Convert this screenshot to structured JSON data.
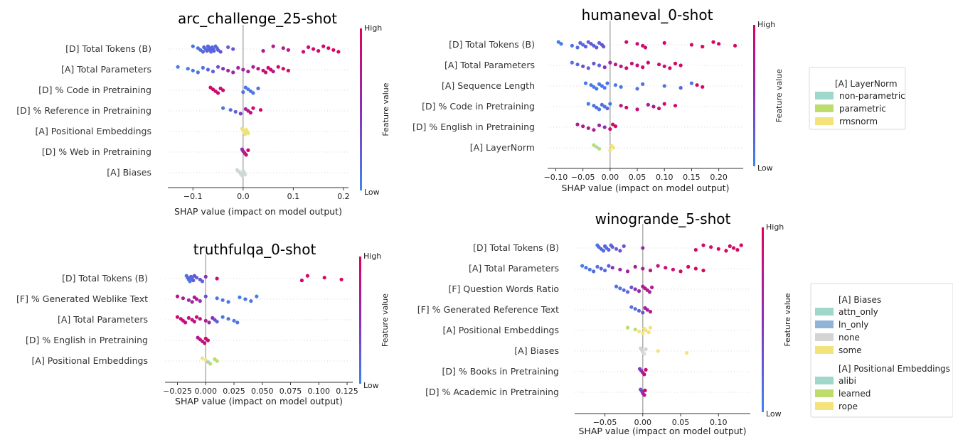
{
  "chart_data": [
    {
      "type": "scatter",
      "subtype": "shap-beeswarm",
      "title": "arc_challenge_25-shot",
      "xlabel": "SHAP value (impact on model output)",
      "xlim": [
        -0.15,
        0.21
      ],
      "xticks": [
        -0.1,
        0.0,
        0.1,
        0.2
      ],
      "xtick_labels": [
        "−0.1",
        "0.0",
        "0.1",
        "0.2"
      ],
      "colorbar": {
        "label": "Feature value",
        "high": "High",
        "low": "Low"
      },
      "features": [
        {
          "name": "[D] Total Tokens (B)",
          "points": [
            -0.1,
            -0.09,
            -0.085,
            -0.08,
            -0.078,
            -0.075,
            -0.072,
            -0.07,
            -0.068,
            -0.066,
            -0.064,
            -0.062,
            -0.06,
            -0.058,
            -0.055,
            -0.052,
            -0.05,
            -0.045,
            -0.03,
            -0.02,
            0.04,
            0.06,
            0.08,
            0.09,
            0.12,
            0.13,
            0.14,
            0.15,
            0.16,
            0.17,
            0.18,
            0.19
          ],
          "colors": [
            0.1,
            0.1,
            0.15,
            0.2,
            0.2,
            0.15,
            0.2,
            0.15,
            0.2,
            0.2,
            0.15,
            0.15,
            0.2,
            0.2,
            0.15,
            0.2,
            0.2,
            0.3,
            0.2,
            0.3,
            0.7,
            0.7,
            0.75,
            0.8,
            0.85,
            0.85,
            0.9,
            0.9,
            0.9,
            0.95,
            0.95,
            0.95
          ]
        },
        {
          "name": "[A] Total Parameters",
          "points": [
            -0.13,
            -0.11,
            -0.1,
            -0.09,
            -0.08,
            -0.07,
            -0.06,
            -0.05,
            -0.04,
            -0.03,
            -0.02,
            -0.01,
            0.0,
            0.01,
            0.02,
            0.03,
            0.04,
            0.045,
            0.05,
            0.055,
            0.06,
            0.07,
            0.08,
            0.09
          ],
          "colors": [
            0.05,
            0.05,
            0.1,
            0.1,
            0.1,
            0.2,
            0.2,
            0.3,
            0.5,
            0.6,
            0.6,
            0.65,
            0.6,
            0.65,
            0.7,
            0.8,
            0.85,
            0.85,
            0.9,
            0.9,
            0.7,
            0.9,
            0.95,
            0.95
          ]
        },
        {
          "name": "[D] % Code in Pretraining",
          "points": [
            -0.065,
            -0.06,
            -0.055,
            -0.05,
            -0.045,
            -0.04,
            0.0,
            0.005,
            0.01,
            0.015,
            0.02,
            0.03
          ],
          "colors": [
            0.9,
            0.9,
            0.85,
            0.9,
            0.85,
            0.9,
            0.1,
            0.1,
            0.05,
            0.1,
            0.1,
            0.1
          ]
        },
        {
          "name": "[D] % Reference in Pretraining",
          "points": [
            -0.04,
            -0.025,
            -0.015,
            -0.005,
            0.005,
            0.01,
            0.015,
            0.02,
            0.035
          ],
          "colors": [
            0.1,
            0.15,
            0.2,
            0.4,
            0.6,
            0.8,
            0.85,
            0.9,
            0.9
          ]
        },
        {
          "name": "[A] Positional Embeddings",
          "points": [
            -0.002,
            0.0,
            0.002,
            0.004,
            0.006,
            0.008,
            0.01
          ],
          "colors": [
            "#e8e07a",
            "#ebe27c",
            "#eee57d",
            "#ede37b",
            "#eee57d",
            "#ebe27c",
            "#ede37b"
          ]
        },
        {
          "name": "[D] % Web in Pretraining",
          "points": [
            -0.002,
            0.0,
            0.003,
            0.006,
            0.01
          ],
          "colors": [
            0.5,
            0.6,
            0.8,
            0.85,
            0.9
          ]
        },
        {
          "name": "[A] Biases",
          "points": [
            -0.012,
            -0.008,
            -0.005,
            -0.002,
            0.0,
            0.002,
            0.004
          ],
          "colors": [
            "#cdd8d0",
            "#c8d6cf",
            "#cfd9d2",
            "#d0d6d3",
            "#d3d8d5",
            "#cfd6d2",
            "#d3d9d5"
          ]
        }
      ]
    },
    {
      "type": "scatter",
      "subtype": "shap-beeswarm",
      "title": "humaneval_0-shot",
      "xlabel": "SHAP value (impact on model output)",
      "xlim": [
        -0.115,
        0.245
      ],
      "xticks": [
        -0.1,
        -0.05,
        0.0,
        0.05,
        0.1,
        0.15,
        0.2
      ],
      "xtick_labels": [
        "−0.10",
        "−0.05",
        "0.00",
        "0.05",
        "0.10",
        "0.15",
        "0.20"
      ],
      "colorbar": {
        "label": "Feature value",
        "high": "High",
        "low": "Low"
      },
      "legend": {
        "title": "[A] LayerNorm",
        "entries": [
          {
            "label": "non-parametric",
            "color": "#9fd8cb"
          },
          {
            "label": "parametric",
            "color": "#bedc6c"
          },
          {
            "label": "rmsnorm",
            "color": "#f4e37a"
          }
        ]
      },
      "features": [
        {
          "name": "[D] Total Tokens (B)",
          "points": [
            -0.095,
            -0.09,
            -0.07,
            -0.06,
            -0.055,
            -0.05,
            -0.045,
            -0.04,
            -0.035,
            -0.03,
            -0.025,
            -0.02,
            -0.015,
            -0.012,
            0.03,
            0.05,
            0.06,
            0.065,
            0.1,
            0.15,
            0.17,
            0.19,
            0.2,
            0.23
          ],
          "colors": [
            0.05,
            0.05,
            0.1,
            0.15,
            0.2,
            0.15,
            0.25,
            0.2,
            0.3,
            0.2,
            0.25,
            0.2,
            0.3,
            0.25,
            0.9,
            0.85,
            0.9,
            0.85,
            0.9,
            0.9,
            0.95,
            0.95,
            0.95,
            0.95
          ]
        },
        {
          "name": "[A] Total Parameters",
          "points": [
            -0.07,
            -0.06,
            -0.05,
            -0.04,
            -0.03,
            -0.02,
            -0.01,
            0.0,
            0.01,
            0.02,
            0.03,
            0.04,
            0.05,
            0.06,
            0.07,
            0.09,
            0.1,
            0.11,
            0.12,
            0.13
          ],
          "colors": [
            0.1,
            0.15,
            0.3,
            0.2,
            0.3,
            0.2,
            0.5,
            0.6,
            0.75,
            0.8,
            0.85,
            0.8,
            0.85,
            0.9,
            0.9,
            0.9,
            0.85,
            0.9,
            0.95,
            0.95
          ]
        },
        {
          "name": "[A] Sequence Length",
          "points": [
            -0.045,
            -0.035,
            -0.03,
            -0.025,
            -0.02,
            -0.015,
            -0.01,
            -0.005,
            0.01,
            0.02,
            0.05,
            0.06,
            0.1,
            0.13,
            0.15,
            0.16,
            0.17
          ],
          "colors": [
            0.05,
            0.1,
            0.05,
            0.1,
            0.05,
            0.1,
            0.05,
            0.1,
            0.05,
            0.1,
            0.1,
            0.1,
            0.1,
            0.2,
            0.1,
            0.9,
            0.95
          ]
        },
        {
          "name": "[D] % Code in Pretraining",
          "points": [
            -0.04,
            -0.03,
            -0.025,
            -0.02,
            -0.015,
            -0.01,
            -0.005,
            0.0,
            0.02,
            0.03,
            0.05,
            0.07,
            0.08,
            0.09,
            0.1,
            0.12
          ],
          "colors": [
            0.05,
            0.1,
            0.15,
            0.1,
            0.15,
            0.1,
            0.15,
            0.1,
            0.8,
            0.85,
            0.85,
            0.7,
            0.75,
            0.8,
            0.85,
            0.9
          ]
        },
        {
          "name": "[D] % English in Pretraining",
          "points": [
            -0.06,
            -0.05,
            -0.04,
            -0.03,
            -0.02,
            -0.01,
            0.0,
            0.005,
            0.01
          ],
          "colors": [
            0.7,
            0.7,
            0.75,
            0.7,
            0.6,
            0.5,
            0.85,
            0.9,
            0.95
          ]
        },
        {
          "name": "[A] LayerNorm",
          "points": [
            -0.03,
            -0.025,
            -0.02,
            0.0,
            0.003,
            0.006
          ],
          "colors": [
            "#bedc6c",
            "#9fd8cb",
            "#bedc6c",
            "#f4e37a",
            "#f1e27a",
            "#f4e37a"
          ]
        }
      ]
    },
    {
      "type": "scatter",
      "subtype": "shap-beeswarm",
      "title": "truthfulqa_0-shot",
      "xlabel": "SHAP value (impact on model output)",
      "xlim": [
        -0.036,
        0.13
      ],
      "xticks": [
        -0.025,
        0.0,
        0.025,
        0.05,
        0.075,
        0.1,
        0.125
      ],
      "xtick_labels": [
        "−0.025",
        "0.000",
        "0.025",
        "0.050",
        "0.075",
        "0.100",
        "0.125"
      ],
      "colorbar": {
        "label": "Feature value",
        "high": "High",
        "low": "Low"
      },
      "features": [
        {
          "name": "[D] Total Tokens (B)",
          "points": [
            -0.017,
            -0.016,
            -0.015,
            -0.014,
            -0.013,
            -0.012,
            -0.011,
            -0.01,
            -0.008,
            -0.005,
            -0.003,
            0.0,
            0.01,
            0.085,
            0.09,
            0.105,
            0.12
          ],
          "colors": [
            0.1,
            0.15,
            0.2,
            0.1,
            0.2,
            0.15,
            0.2,
            0.3,
            0.2,
            0.3,
            0.2,
            0.5,
            0.9,
            0.9,
            0.9,
            0.95,
            0.95
          ]
        },
        {
          "name": "[F] % Generated Weblike Text",
          "points": [
            -0.025,
            -0.02,
            -0.015,
            -0.012,
            -0.01,
            -0.008,
            -0.005,
            0.0,
            0.01,
            0.015,
            0.02,
            0.03,
            0.035,
            0.04,
            0.045
          ],
          "colors": [
            0.8,
            0.7,
            0.6,
            0.65,
            0.7,
            0.75,
            0.5,
            0.3,
            0.1,
            0.1,
            0.1,
            0.05,
            0.1,
            0.1,
            0.05
          ]
        },
        {
          "name": "[A] Total Parameters",
          "points": [
            -0.025,
            -0.022,
            -0.02,
            -0.018,
            -0.015,
            -0.012,
            -0.01,
            -0.008,
            -0.005,
            0.0,
            0.003,
            0.006,
            0.008,
            0.01,
            0.015,
            0.02,
            0.025,
            0.028
          ],
          "colors": [
            0.9,
            0.85,
            0.8,
            0.85,
            0.8,
            0.75,
            0.8,
            0.85,
            0.8,
            0.7,
            0.6,
            0.5,
            0.3,
            0.2,
            0.1,
            0.1,
            0.05,
            0.1
          ]
        },
        {
          "name": "[D] % English in Pretraining",
          "points": [
            -0.007,
            -0.005,
            -0.003,
            -0.001,
            0.0,
            0.002
          ],
          "colors": [
            0.7,
            0.75,
            0.8,
            0.85,
            0.9,
            0.9
          ]
        },
        {
          "name": "[A] Positional Embeddings",
          "points": [
            -0.003,
            0.0,
            0.002,
            0.004,
            0.008,
            0.01
          ],
          "colors": [
            "#f4e37a",
            "#f4e37a",
            "#9fd8cb",
            "#bedc6c",
            "#bedc6c",
            "#bedc6c"
          ]
        }
      ]
    },
    {
      "type": "scatter",
      "subtype": "shap-beeswarm",
      "title": "winogrande_5-shot",
      "xlabel": "SHAP value (impact on model output)",
      "xlim": [
        -0.09,
        0.142
      ],
      "xticks": [
        -0.05,
        0.0,
        0.05,
        0.1
      ],
      "xtick_labels": [
        "−0.05",
        "0.00",
        "0.05",
        "0.10"
      ],
      "colorbar": {
        "label": "Feature value",
        "high": "High",
        "low": "Low"
      },
      "legend_groups": [
        {
          "title": "[A] Biases",
          "entries": [
            {
              "label": "attn_only",
              "color": "#9fd8cb"
            },
            {
              "label": "ln_only",
              "color": "#8fb4d8"
            },
            {
              "label": "none",
              "color": "#d4d4d4"
            },
            {
              "label": "some",
              "color": "#f4e37a"
            }
          ]
        },
        {
          "title": "[A] Positional Embeddings",
          "entries": [
            {
              "label": "alibi",
              "color": "#9fd8cb"
            },
            {
              "label": "learned",
              "color": "#bedc6c"
            },
            {
              "label": "rope",
              "color": "#f4e37a"
            }
          ]
        }
      ],
      "features": [
        {
          "name": "[D] Total Tokens (B)",
          "points": [
            -0.06,
            -0.058,
            -0.055,
            -0.052,
            -0.05,
            -0.048,
            -0.045,
            -0.042,
            -0.04,
            -0.035,
            -0.03,
            -0.025,
            0.0,
            0.07,
            0.08,
            0.09,
            0.1,
            0.11,
            0.115,
            0.12,
            0.125,
            0.13
          ],
          "colors": [
            0.1,
            0.15,
            0.2,
            0.15,
            0.2,
            0.15,
            0.2,
            0.2,
            0.25,
            0.2,
            0.3,
            0.3,
            0.6,
            0.9,
            0.9,
            0.9,
            0.95,
            0.95,
            0.9,
            0.95,
            0.95,
            0.95
          ]
        },
        {
          "name": "[A] Total Parameters",
          "points": [
            -0.08,
            -0.075,
            -0.07,
            -0.065,
            -0.06,
            -0.055,
            -0.05,
            -0.045,
            -0.04,
            -0.03,
            -0.02,
            -0.01,
            0.0,
            0.01,
            0.02,
            0.03,
            0.04,
            0.05,
            0.06,
            0.07,
            0.08
          ],
          "colors": [
            0.05,
            0.1,
            0.1,
            0.15,
            0.1,
            0.2,
            0.15,
            0.2,
            0.5,
            0.6,
            0.65,
            0.7,
            0.7,
            0.75,
            0.8,
            0.85,
            0.85,
            0.9,
            0.9,
            0.95,
            0.95
          ]
        },
        {
          "name": "[F] Question Words Ratio",
          "points": [
            -0.035,
            -0.03,
            -0.025,
            -0.02,
            -0.015,
            -0.01,
            -0.005,
            0.0,
            0.003,
            0.006,
            0.009,
            0.012
          ],
          "colors": [
            0.1,
            0.1,
            0.15,
            0.2,
            0.3,
            0.5,
            0.6,
            0.7,
            0.75,
            0.7,
            0.65,
            0.7
          ]
        },
        {
          "name": "[F] % Generated Reference Text",
          "points": [
            -0.015,
            -0.01,
            -0.005,
            0.0,
            0.003,
            0.006,
            0.01
          ],
          "colors": [
            0.1,
            0.15,
            0.2,
            0.3,
            0.6,
            0.7,
            0.75
          ]
        },
        {
          "name": "[A] Positional Embeddings",
          "points": [
            -0.02,
            -0.01,
            -0.005,
            0.0,
            0.002,
            0.004,
            0.008,
            0.01
          ],
          "colors": [
            "#bedc6c",
            "#bedc6c",
            "#f4e37a",
            "#f4e37a",
            "#f4e37a",
            "#f4e37a",
            "#f4e37a",
            "#f4e37a"
          ]
        },
        {
          "name": "[A] Biases",
          "points": [
            -0.003,
            -0.001,
            0.0,
            0.002,
            0.004,
            0.02,
            0.058
          ],
          "colors": [
            "#d4d4d4",
            "#cfd6d2",
            "#d4d4d4",
            "#d9dcd8",
            "#d4d4d4",
            "#f4e37a",
            "#f4e37a"
          ]
        },
        {
          "name": "[D] % Books in Pretraining",
          "points": [
            -0.004,
            -0.002,
            0.0,
            0.002,
            0.004
          ],
          "colors": [
            0.4,
            0.5,
            0.7,
            0.85,
            0.9
          ]
        },
        {
          "name": "[D] % Academic in Pretraining",
          "points": [
            -0.003,
            -0.001,
            0.0,
            0.002,
            0.003
          ],
          "colors": [
            0.3,
            0.4,
            0.6,
            0.8,
            0.9
          ]
        }
      ]
    }
  ]
}
